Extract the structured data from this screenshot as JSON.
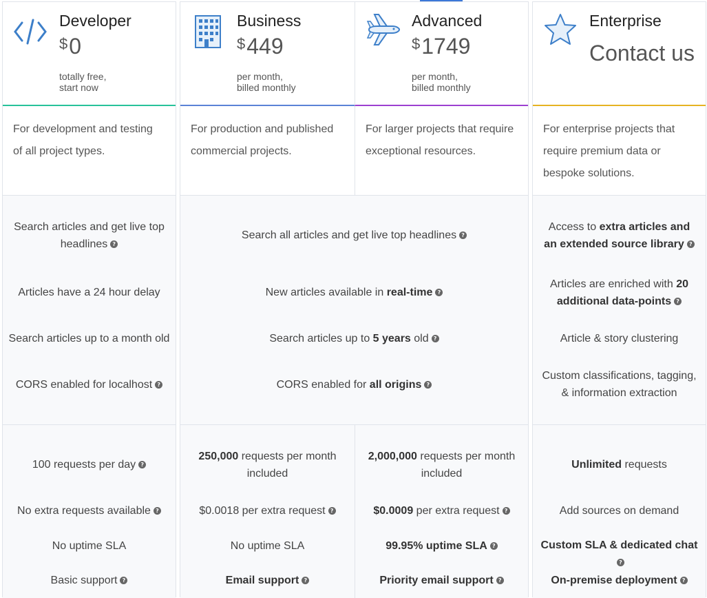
{
  "plans": [
    {
      "name": "Developer",
      "currency": "$",
      "price": "0",
      "billing_l1": "totally free,",
      "billing_l2": "start now",
      "color": "#27c29a",
      "desc_l1": "For development and testing",
      "desc_l2": "of all project types."
    },
    {
      "name": "Business",
      "currency": "$",
      "price": "449",
      "billing_l1": "per month,",
      "billing_l2": "billed monthly",
      "color": "#5a82d6",
      "desc_l1": "For production and published",
      "desc_l2": "commercial projects."
    },
    {
      "name": "Advanced",
      "currency": "$",
      "price": "1749",
      "billing_l1": "per month,",
      "billing_l2": "billed monthly",
      "color": "#9c3fd0",
      "desc_l1": "For larger projects that require",
      "desc_l2": "exceptional resources."
    },
    {
      "name": "Enterprise",
      "contact": "Contact us",
      "color": "#e6b322",
      "desc_l1": "For enterprise projects that",
      "desc_l2": "require premium data or",
      "desc_l3": "bespoke solutions."
    }
  ],
  "features": {
    "dev": {
      "f1_l1": "Search articles and get live top",
      "f1_l2": "headlines",
      "f2": "Articles have a 24 hour delay",
      "f3": "Search articles up to a month old",
      "f4": "CORS enabled for localhost"
    },
    "paid": {
      "f1": "Search all articles and get live top headlines",
      "f2_pre": "New articles available in ",
      "f2_b": "real-time",
      "f3_pre": "Search articles up to ",
      "f3_b": "5 years",
      "f3_post": " old",
      "f4_pre": "CORS enabled for ",
      "f4_b": "all origins"
    },
    "ent": {
      "f1_pre": "Access to ",
      "f1_b1": "extra articles and",
      "f1_b2": "an extended source library",
      "f2_pre": "Articles are enriched with ",
      "f2_b1": "20",
      "f2_b2": "additional data-points",
      "f3": "Article & story clustering",
      "f4_l1": "Custom classifications, tagging,",
      "f4_l2": "& information extraction"
    }
  },
  "limits": {
    "dev": {
      "req": "100 requests per day",
      "extra": "No extra requests available",
      "sla": "No uptime SLA",
      "support": "Basic support"
    },
    "biz": {
      "req_b": "250,000",
      "req_post": " requests per month",
      "req_l2": "included",
      "extra": "$0.0018 per extra request",
      "sla": "No uptime SLA",
      "support_b": "Email support"
    },
    "adv": {
      "req_b": "2,000,000",
      "req_post": " requests per month",
      "req_l2": "included",
      "extra_b": "$0.0009",
      "extra_post": " per extra request",
      "sla_b": "99.95% uptime SLA",
      "support_b": "Priority email support"
    },
    "ent": {
      "req_b": "Unlimited",
      "req_post": " requests",
      "extra": "Add sources on demand",
      "sla_b": "Custom SLA & dedicated chat",
      "support_b": "On-premise deployment"
    }
  },
  "help_glyph": "?"
}
